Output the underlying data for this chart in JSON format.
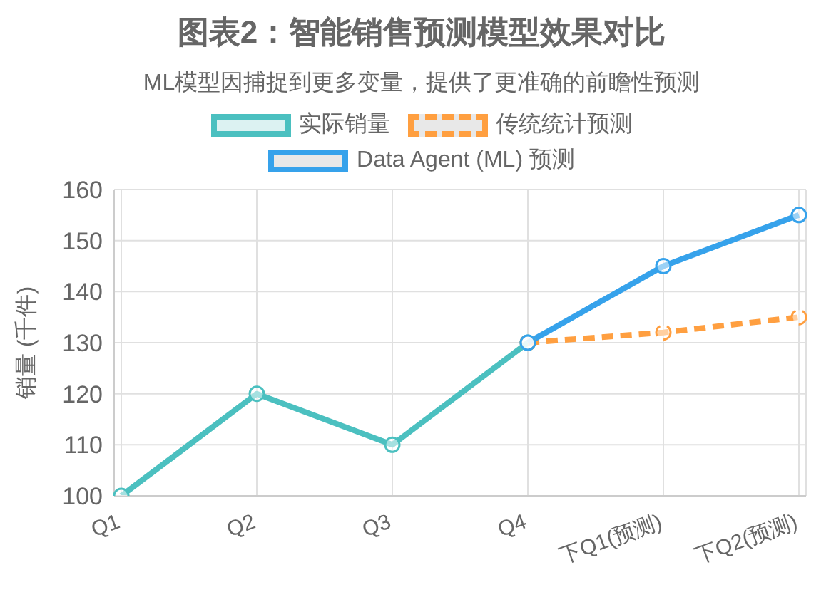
{
  "chart_data": {
    "type": "line",
    "title": "图表2：智能销售预测模型效果对比",
    "subtitle": "ML模型因捕捉到更多变量，提供了更准确的前瞻性预测",
    "ylabel": "销量 (千件)",
    "categories": [
      "Q1",
      "Q2",
      "Q3",
      "Q4",
      "下Q1(预测)",
      "下Q2(预测)"
    ],
    "series": [
      {
        "name": "实际销量",
        "color": "#4bc0c0",
        "values": [
          100,
          120,
          110,
          130,
          null,
          null
        ],
        "line_style": "solid"
      },
      {
        "name": "传统统计预测",
        "color": "#ff9f40",
        "values": [
          null,
          null,
          null,
          130,
          132,
          135
        ],
        "line_style": "dashed"
      },
      {
        "name": "Data Agent (ML) 预测",
        "color": "#36a2eb",
        "values": [
          null,
          null,
          null,
          130,
          145,
          155
        ],
        "line_style": "solid"
      }
    ],
    "ylim": [
      100,
      160
    ],
    "yticks": [
      100,
      110,
      120,
      130,
      140,
      150,
      160
    ],
    "grid": true,
    "legend": "top",
    "marker": "circle"
  }
}
